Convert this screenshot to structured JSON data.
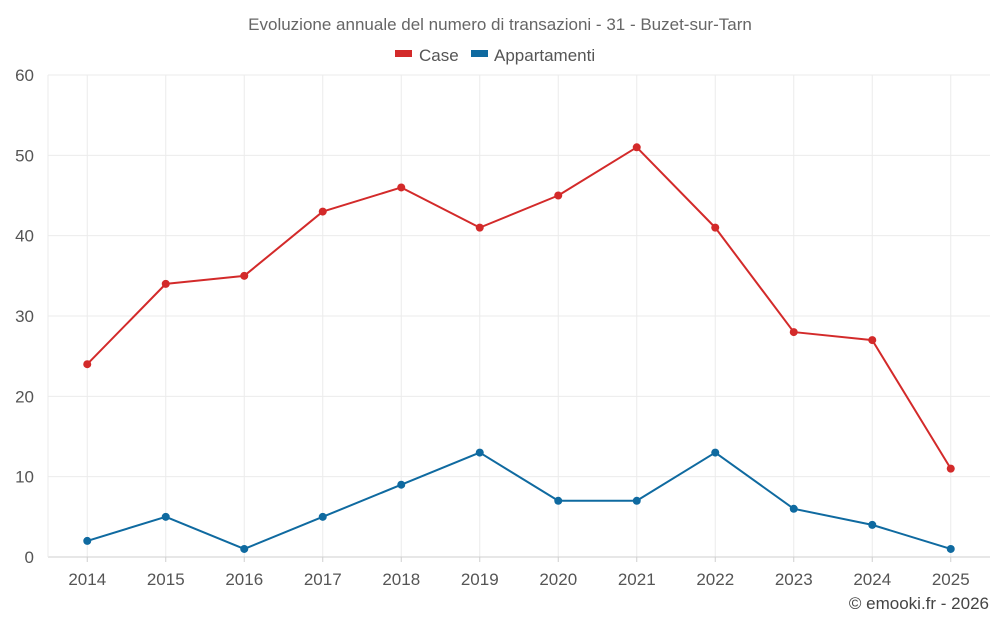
{
  "chart_data": {
    "type": "line",
    "title": "Evoluzione annuale del numero di transazioni - 31 - Buzet-sur-Tarn",
    "categories": [
      "2014",
      "2015",
      "2016",
      "2017",
      "2018",
      "2019",
      "2020",
      "2021",
      "2022",
      "2023",
      "2024",
      "2025"
    ],
    "series": [
      {
        "name": "Case",
        "color": "#d32a2a",
        "values": [
          24,
          34,
          35,
          43,
          46,
          41,
          45,
          51,
          41,
          28,
          27,
          11
        ]
      },
      {
        "name": "Appartamenti",
        "color": "#0f6aa0",
        "values": [
          2,
          5,
          1,
          5,
          9,
          13,
          7,
          7,
          13,
          6,
          4,
          1
        ]
      }
    ],
    "ylim": [
      0,
      60
    ],
    "yticks": [
      0,
      10,
      20,
      30,
      40,
      50,
      60
    ],
    "xlabel": "",
    "ylabel": "",
    "legend": "top-center",
    "grid": true
  },
  "credit": "© emooki.fr - 2026"
}
